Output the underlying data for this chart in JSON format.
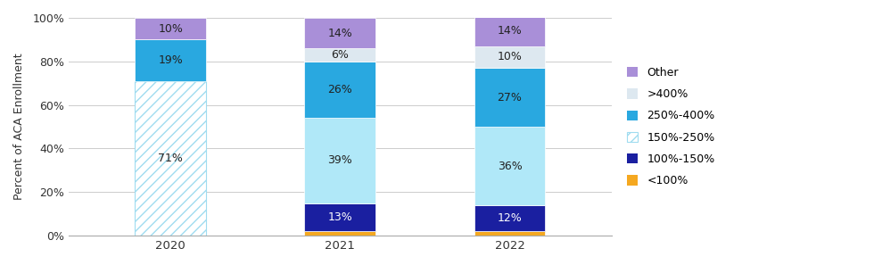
{
  "years": [
    "2020",
    "2021",
    "2022"
  ],
  "segments": [
    {
      "label": "<100%",
      "values": [
        0,
        2,
        2
      ],
      "color": "#F5A820",
      "hatch": [
        null,
        null,
        null
      ]
    },
    {
      "label": "100%-150%",
      "values": [
        0,
        13,
        12
      ],
      "color": "#1A1FA0",
      "hatch": [
        null,
        null,
        null
      ]
    },
    {
      "label": "150%-250%",
      "values": [
        71,
        39,
        36
      ],
      "color": "#B0E8F8",
      "hatch": [
        "///",
        null,
        null
      ]
    },
    {
      "label": "250%-400%",
      "values": [
        19,
        26,
        27
      ],
      "color": "#29A8E0",
      "hatch": [
        null,
        null,
        null
      ]
    },
    {
      "label": ">400%",
      "values": [
        0,
        6,
        10
      ],
      "color": "#DDE8F0",
      "hatch": [
        null,
        null,
        null
      ]
    },
    {
      "label": "Other",
      "values": [
        10,
        14,
        14
      ],
      "color": "#A98FD8",
      "hatch": [
        null,
        null,
        null
      ]
    }
  ],
  "pct_labels": {
    "2020": {
      "<100%": null,
      "100%-150%": null,
      "150%-250%": "71%",
      "250%-400%": "19%",
      ">400%": null,
      "Other": "10%"
    },
    "2021": {
      "<100%": null,
      "100%-150%": "13%",
      "150%-250%": "39%",
      "250%-400%": "26%",
      ">400%": "6%",
      "Other": "14%"
    },
    "2022": {
      "<100%": null,
      "100%-150%": "12%",
      "150%-250%": "36%",
      "250%-400%": "27%",
      ">400%": "10%",
      "Other": "14%"
    }
  },
  "ylabel": "Percent of ACA Enrollment",
  "ylim": [
    0,
    100
  ],
  "yticks": [
    0,
    20,
    40,
    60,
    80,
    100
  ],
  "ytick_labels": [
    "0%",
    "20%",
    "40%",
    "60%",
    "80%",
    "100%"
  ],
  "background_color": "#FFFFFF",
  "bar_width": 0.42,
  "hatch_bg_color": "#FFFFFF",
  "hatch_line_color": "#A0DCF0"
}
